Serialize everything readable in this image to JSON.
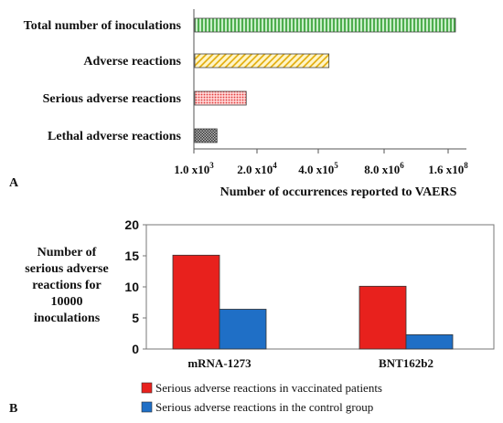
{
  "chart_data": [
    {
      "panel": "A",
      "type": "bar",
      "orientation": "horizontal",
      "categories": [
        "Total number of inoculations",
        "Adverse reactions",
        "Serious adverse reactions",
        "Lethal adverse reactions"
      ],
      "values": [
        230000000,
        650000,
        12000,
        3000
      ],
      "xlabel": "Number of occurrences reported to VAERS",
      "xscale": "log",
      "x_ticks": [
        {
          "base": "1.0 x10",
          "exp": "3",
          "value": 1000
        },
        {
          "base": "2.0 x10",
          "exp": "4",
          "value": 20000
        },
        {
          "base": "4.0 x10",
          "exp": "5",
          "value": 400000
        },
        {
          "base": "8.0 x10",
          "exp": "6",
          "value": 8000000
        },
        {
          "base": "1.6 x10",
          "exp": "8",
          "value": 160000000
        }
      ],
      "bar_styles": [
        {
          "fill": "#2e9e2e",
          "bg": "#c8efc8",
          "pattern": "vertical-lines"
        },
        {
          "fill": "#e0a800",
          "bg": "#fff5c8",
          "pattern": "diagonal-lines"
        },
        {
          "fill": "#e23b3b",
          "bg": "#ffd6d6",
          "pattern": "dots"
        },
        {
          "fill": "#333333",
          "bg": "#bdbdbd",
          "pattern": "crosshatch"
        }
      ]
    },
    {
      "panel": "B",
      "type": "bar",
      "categories": [
        "mRNA-1273",
        "BNT162b2"
      ],
      "series": [
        {
          "name": "Serious adverse reactions in vaccinated patients",
          "values": [
            15.1,
            10.1
          ],
          "color": "#e8211d"
        },
        {
          "name": "Serious adverse reactions in the control group",
          "values": [
            6.4,
            2.3
          ],
          "color": "#1f6fc6"
        }
      ],
      "ylabel_lines": [
        "Number of",
        "serious adverse",
        "reactions for",
        "10000",
        "inoculations"
      ],
      "ylim": [
        0,
        20
      ],
      "y_ticks": [
        0,
        5,
        10,
        15,
        20
      ],
      "legend_position": "bottom"
    }
  ]
}
